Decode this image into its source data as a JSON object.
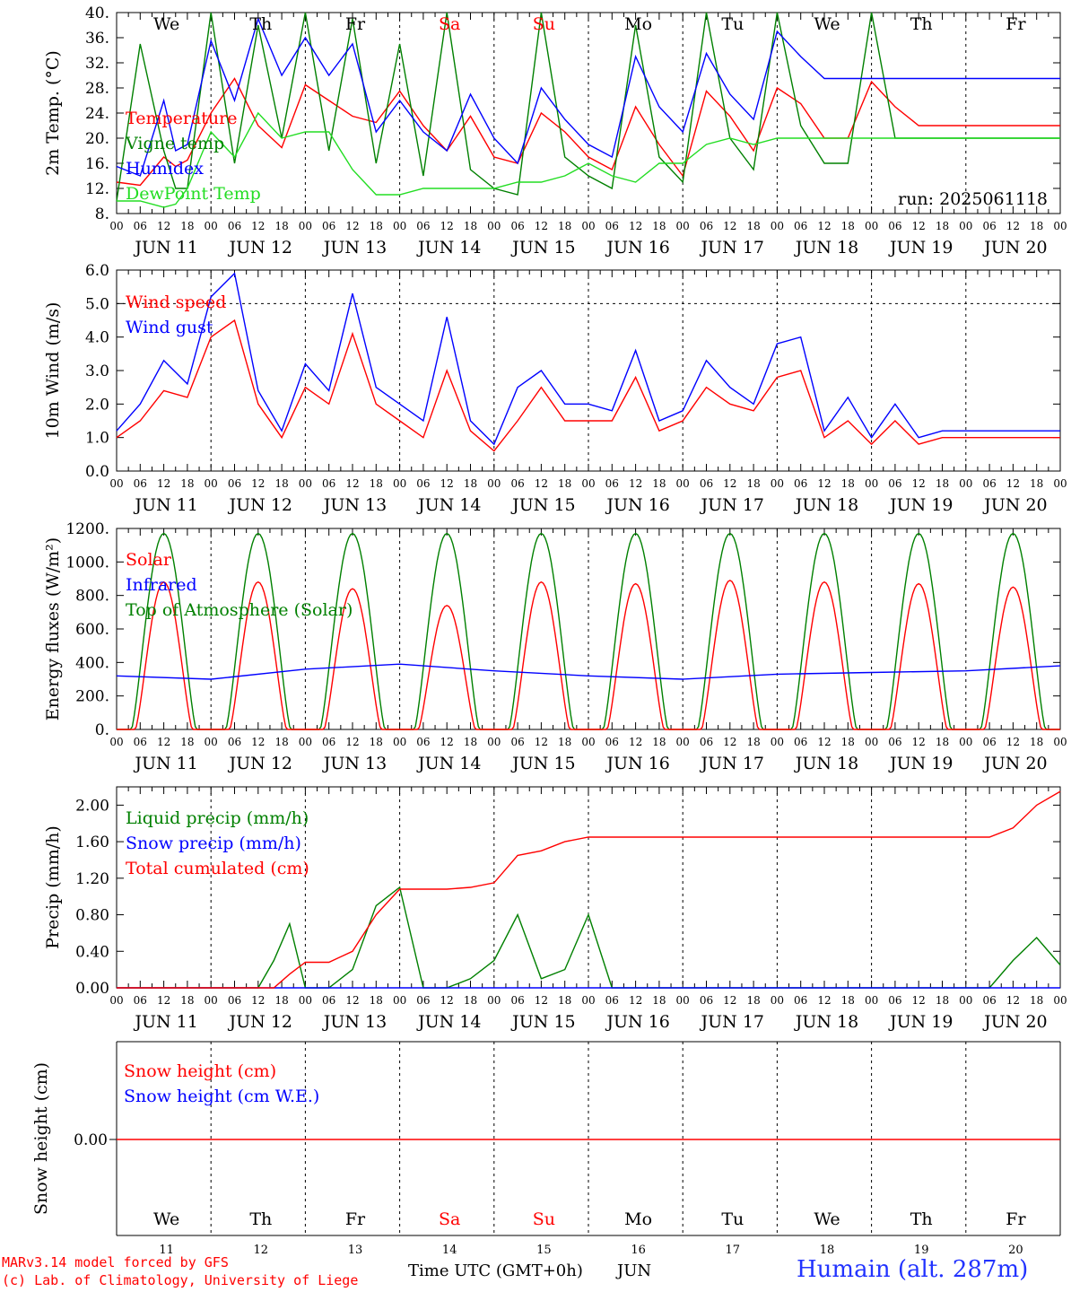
{
  "colors": {
    "red": "#ff0000",
    "green": "#008000",
    "blue": "#0000ff",
    "light_green": "#22dd22",
    "grey": "#888888",
    "black": "#000000"
  },
  "day_labels": [
    "We",
    "Th",
    "Fr",
    "Sa",
    "Su",
    "Mo",
    "Tu",
    "We",
    "Th",
    "Fr"
  ],
  "weekend_days": [
    "Sa",
    "Su"
  ],
  "date_labels": [
    "JUN 11",
    "JUN 12",
    "JUN 13",
    "JUN 14",
    "JUN 15",
    "JUN 16",
    "JUN 17",
    "JUN 18",
    "JUN 19",
    "JUN 20"
  ],
  "bottom_day_numbers": [
    "11",
    "12",
    "13",
    "14",
    "15",
    "16",
    "17",
    "18",
    "19",
    "20"
  ],
  "hour_ticks": [
    "00",
    "06",
    "12",
    "18"
  ],
  "final_tick": "00",
  "footer": {
    "model": "MARv3.14 model forced by GFS",
    "copyright": "(c) Lab. of Climatology, University of Liege",
    "time_axis": "Time UTC (GMT+0h)",
    "month": "JUN",
    "station": "Humain (alt. 287m)"
  },
  "chart_data": [
    {
      "type": "line",
      "ylabel": "2m Temp. (°C)",
      "ylim": [
        8,
        40
      ],
      "yticks": [
        "8.",
        "12.",
        "16.",
        "20.",
        "24.",
        "28.",
        "32.",
        "36.",
        "40."
      ],
      "annotation": "run: 2025061118",
      "x_unit": "hours from 2025-06-11 00 UTC",
      "series": [
        {
          "name": "Temperature",
          "color": "#ff0000",
          "x": [
            0,
            6,
            12,
            15,
            18,
            24,
            30,
            36,
            42,
            48,
            54,
            60,
            66,
            72,
            78,
            84,
            90,
            96,
            102,
            108,
            114,
            120,
            126,
            132,
            138,
            144,
            150,
            156,
            162,
            168,
            174,
            180,
            186,
            192,
            198,
            204,
            210,
            216,
            222,
            228,
            234,
            240
          ],
          "y": [
            13,
            12.5,
            17,
            15.5,
            16.5,
            24,
            29.5,
            22,
            18.5,
            28.5,
            26,
            23.5,
            22.5,
            27.5,
            22,
            18,
            23.5,
            17,
            16,
            24,
            21,
            17,
            15,
            25,
            19,
            14,
            27.5,
            23.5,
            18,
            28,
            25.5,
            20,
            20,
            29,
            25,
            22,
            22,
            22,
            22,
            22,
            22,
            22
          ]
        },
        {
          "name": "Vigne temp",
          "color": "#008000",
          "x": [
            0,
            6,
            12,
            15,
            18,
            24,
            30,
            36,
            42,
            48,
            54,
            60,
            66,
            72,
            78,
            84,
            90,
            96,
            102,
            108,
            114,
            120,
            126,
            132,
            138,
            144,
            150,
            156,
            162,
            168,
            174,
            180,
            186,
            192,
            198,
            204,
            210,
            216,
            222,
            228,
            234,
            240
          ],
          "y": [
            10,
            35,
            18,
            12,
            12,
            40,
            16,
            38,
            20,
            40,
            18,
            39,
            16,
            35,
            14,
            40,
            15,
            12,
            11,
            40,
            17,
            14,
            12,
            38,
            17,
            13,
            40,
            20,
            15,
            40,
            22,
            16,
            16,
            40,
            20,
            20,
            20,
            20,
            20,
            20,
            20,
            20
          ]
        },
        {
          "name": "Humidex",
          "color": "#0000ff",
          "x": [
            0,
            6,
            12,
            15,
            18,
            24,
            30,
            36,
            42,
            48,
            54,
            60,
            66,
            72,
            78,
            84,
            90,
            96,
            102,
            108,
            114,
            120,
            126,
            132,
            138,
            144,
            150,
            156,
            162,
            168,
            174,
            180,
            186,
            192,
            198,
            204,
            210,
            216,
            222,
            228,
            234,
            240
          ],
          "y": [
            15.5,
            14,
            26,
            18,
            19,
            35.5,
            26,
            39,
            30,
            36,
            30,
            35,
            21,
            26,
            21,
            18,
            27,
            20,
            16,
            28,
            23,
            19,
            17,
            33,
            25,
            21,
            33.5,
            27,
            23,
            37,
            33,
            29.5,
            29.5,
            29.5,
            29.5,
            29.5,
            29.5,
            29.5,
            29.5,
            29.5,
            29.5,
            29.5
          ]
        },
        {
          "name": "DewPoint Temp",
          "color": "#22dd22",
          "x": [
            0,
            6,
            12,
            15,
            18,
            24,
            30,
            36,
            42,
            48,
            54,
            60,
            66,
            72,
            78,
            84,
            90,
            96,
            102,
            108,
            114,
            120,
            126,
            132,
            138,
            144,
            150,
            156,
            162,
            168,
            174,
            180,
            186,
            192,
            198,
            204,
            210,
            216,
            222,
            228,
            234,
            240
          ],
          "y": [
            10,
            10,
            9,
            9.5,
            12,
            21,
            17,
            24,
            20,
            21,
            21,
            15,
            11,
            11,
            12,
            12,
            12,
            12,
            13,
            13,
            14,
            16,
            14,
            13,
            16,
            16,
            19,
            20,
            19,
            20,
            20,
            20,
            20,
            20,
            20,
            20,
            20,
            20,
            20,
            20,
            20,
            20
          ]
        }
      ]
    },
    {
      "type": "line",
      "ylabel": "10m Wind (m/s)",
      "ylim": [
        0,
        6
      ],
      "yticks": [
        "0.0",
        "1.0",
        "2.0",
        "3.0",
        "4.0",
        "5.0",
        "6.0"
      ],
      "reference_line": 5.0,
      "x_unit": "hours from 2025-06-11 00 UTC",
      "series": [
        {
          "name": "Wind speed",
          "color": "#ff0000",
          "x": [
            0,
            6,
            12,
            18,
            24,
            30,
            36,
            42,
            48,
            54,
            60,
            66,
            72,
            78,
            84,
            90,
            96,
            102,
            108,
            114,
            120,
            126,
            132,
            138,
            144,
            150,
            156,
            162,
            168,
            174,
            180,
            186,
            192,
            198,
            204,
            210,
            216,
            222,
            228,
            234,
            240
          ],
          "y": [
            1.0,
            1.5,
            2.4,
            2.2,
            4.0,
            4.5,
            2.0,
            1.0,
            2.5,
            2.0,
            4.1,
            2.0,
            1.5,
            1.0,
            3.0,
            1.2,
            0.6,
            1.5,
            2.5,
            1.5,
            1.5,
            1.5,
            2.8,
            1.2,
            1.5,
            2.5,
            2.0,
            1.8,
            2.8,
            3.0,
            1.0,
            1.5,
            0.8,
            1.5,
            0.8,
            1.0,
            1.0,
            1.0,
            1.0,
            1.0,
            1.0
          ]
        },
        {
          "name": "Wind gust",
          "color": "#0000ff",
          "x": [
            0,
            6,
            12,
            18,
            24,
            30,
            36,
            42,
            48,
            54,
            60,
            66,
            72,
            78,
            84,
            90,
            96,
            102,
            108,
            114,
            120,
            126,
            132,
            138,
            144,
            150,
            156,
            162,
            168,
            174,
            180,
            186,
            192,
            198,
            204,
            210,
            216,
            222,
            228,
            234,
            240
          ],
          "y": [
            1.2,
            2.0,
            3.3,
            2.6,
            5.2,
            5.9,
            2.4,
            1.2,
            3.2,
            2.4,
            5.3,
            2.5,
            2.0,
            1.5,
            4.6,
            1.5,
            0.8,
            2.5,
            3.0,
            2.0,
            2.0,
            1.8,
            3.6,
            1.5,
            1.8,
            3.3,
            2.5,
            2.0,
            3.8,
            4.0,
            1.2,
            2.2,
            1.0,
            2.0,
            1.0,
            1.2,
            1.2,
            1.2,
            1.2,
            1.2,
            1.2
          ]
        }
      ]
    },
    {
      "type": "line",
      "ylabel": "Energy fluxes (W/m²)",
      "ylim": [
        0,
        1200
      ],
      "yticks": [
        "0.",
        "200.",
        "400.",
        "600.",
        "800.",
        "1000.",
        "1200."
      ],
      "x_unit": "hours from 2025-06-11 00 UTC",
      "series": [
        {
          "name": "Solar",
          "color": "#ff0000",
          "daily_peaks": [
            880,
            880,
            840,
            740,
            880,
            870,
            890,
            880,
            870,
            850
          ]
        },
        {
          "name": "Infrared",
          "color": "#0000ff",
          "x": [
            0,
            24,
            48,
            72,
            96,
            120,
            144,
            168,
            192,
            216,
            240
          ],
          "y": [
            320,
            300,
            360,
            390,
            350,
            320,
            300,
            330,
            340,
            350,
            380
          ]
        },
        {
          "name": "Top of Atmosphere (Solar)",
          "color": "#008000",
          "daily_peaks": [
            1170,
            1170,
            1170,
            1170,
            1170,
            1170,
            1170,
            1170,
            1170,
            1170
          ]
        }
      ]
    },
    {
      "type": "line",
      "ylabel": "Precip (mm/h)",
      "ylim": [
        0,
        2.2
      ],
      "yticks": [
        "0.00",
        "0.40",
        "0.80",
        "1.20",
        "1.60",
        "2.00"
      ],
      "x_unit": "hours from 2025-06-11 00 UTC",
      "series": [
        {
          "name": "Liquid precip (mm/h)",
          "color": "#008000",
          "x": [
            0,
            36,
            40,
            44,
            48,
            54,
            60,
            66,
            72,
            78,
            84,
            90,
            96,
            102,
            108,
            114,
            120,
            126,
            132,
            138,
            144,
            150,
            156,
            162,
            168,
            174,
            180,
            186,
            192,
            198,
            204,
            210,
            216,
            222,
            228,
            234,
            240
          ],
          "y": [
            0,
            0,
            0.3,
            0.7,
            0,
            0,
            0.2,
            0.9,
            1.1,
            0,
            0,
            0.1,
            0.3,
            0.8,
            0.1,
            0.2,
            0.8,
            0,
            0,
            0,
            0,
            0,
            0,
            0,
            0,
            0,
            0,
            0,
            0,
            0,
            0,
            0,
            0,
            0,
            0.3,
            0.55,
            0.25
          ]
        },
        {
          "name": "Snow precip (mm/h)",
          "color": "#0000ff",
          "x": [
            0,
            240
          ],
          "y": [
            0,
            0
          ]
        },
        {
          "name": "Total cumulated (cm)",
          "color": "#ff0000",
          "x": [
            0,
            40,
            44,
            48,
            54,
            60,
            66,
            72,
            78,
            84,
            90,
            96,
            102,
            108,
            114,
            120,
            126,
            132,
            138,
            144,
            150,
            156,
            162,
            168,
            174,
            180,
            186,
            192,
            198,
            204,
            210,
            216,
            222,
            228,
            234,
            240
          ],
          "y": [
            0,
            0,
            0.15,
            0.28,
            0.28,
            0.4,
            0.8,
            1.08,
            1.08,
            1.08,
            1.1,
            1.15,
            1.45,
            1.5,
            1.6,
            1.65,
            1.65,
            1.65,
            1.65,
            1.65,
            1.65,
            1.65,
            1.65,
            1.65,
            1.65,
            1.65,
            1.65,
            1.65,
            1.65,
            1.65,
            1.65,
            1.65,
            1.65,
            1.75,
            2.0,
            2.15
          ]
        }
      ]
    },
    {
      "type": "line",
      "ylabel": "Snow height (cm)",
      "yticks": [
        "0.00"
      ],
      "x_unit": "hours from 2025-06-11 00 UTC",
      "series": [
        {
          "name": "Snow height (cm)",
          "color": "#ff0000",
          "x": [
            0,
            240
          ],
          "y": [
            0,
            0
          ]
        },
        {
          "name": "Snow height (cm W.E.)",
          "color": "#0000ff",
          "x": [
            0,
            240
          ],
          "y": [
            0,
            0
          ]
        }
      ]
    }
  ]
}
